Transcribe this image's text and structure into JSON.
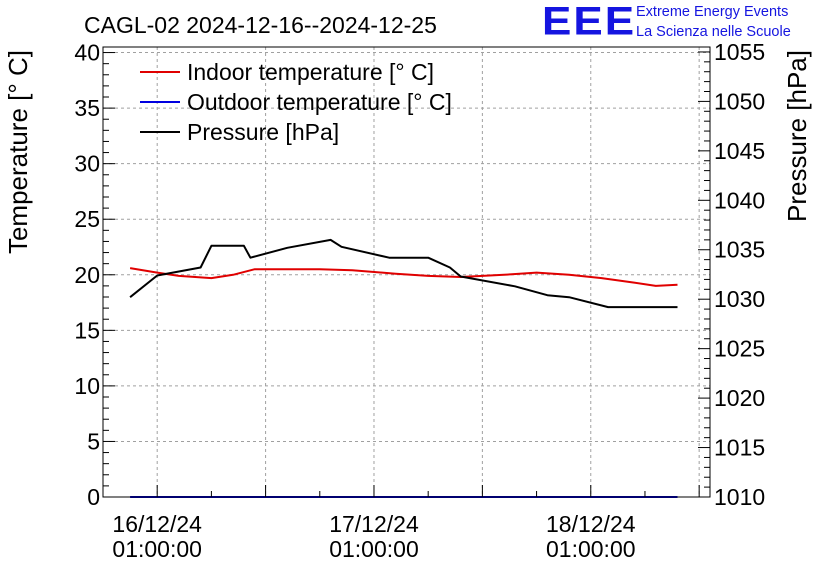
{
  "title": "CAGL-02 2024-12-16--2024-12-25",
  "logo": {
    "mark": "EEE",
    "line1": "Extreme Energy Events",
    "line2": "La Scienza nelle Scuole"
  },
  "chart_data": {
    "type": "line",
    "title": "CAGL-02 2024-12-16--2024-12-25",
    "ylabel": "Temperature [° C]",
    "y2label": "Pressure [hPa]",
    "ylim": [
      0,
      40.5
    ],
    "y2lim": [
      1010,
      1055.5
    ],
    "xlim": [
      -0.25,
      2.55
    ],
    "x_unit": "days since 16/12/24 01:00:00",
    "grid": true,
    "legend_position": "top-left",
    "yticks": [
      0,
      5,
      10,
      15,
      20,
      25,
      30,
      35,
      40
    ],
    "y2ticks": [
      1010,
      1015,
      1020,
      1025,
      1030,
      1035,
      1040,
      1045,
      1050,
      1055
    ],
    "xticks": [
      {
        "value": 0,
        "date": "16/12/24",
        "time": "01:00:00"
      },
      {
        "value": 1,
        "date": "17/12/24",
        "time": "01:00:00"
      },
      {
        "value": 2,
        "date": "18/12/24",
        "time": "01:00:00"
      }
    ],
    "series": [
      {
        "name": "Indoor temperature [° C]",
        "color": "#e00000",
        "axis": "left",
        "x": [
          -0.125,
          0.0,
          0.1,
          0.25,
          0.35,
          0.45,
          0.6,
          0.75,
          0.9,
          1.1,
          1.25,
          1.4,
          1.6,
          1.75,
          1.9,
          2.05,
          2.2,
          2.3,
          2.4
        ],
        "y": [
          20.6,
          20.2,
          19.9,
          19.7,
          20.0,
          20.5,
          20.5,
          20.5,
          20.4,
          20.1,
          19.9,
          19.8,
          20.0,
          20.2,
          20.0,
          19.7,
          19.3,
          19.0,
          19.1
        ]
      },
      {
        "name": "Outdoor temperature [° C]",
        "color": "#0000e0",
        "axis": "left",
        "x": [
          -0.125,
          2.4
        ],
        "y": [
          0,
          0
        ]
      },
      {
        "name": "Pressure [hPa]",
        "color": "#000000",
        "axis": "right",
        "x": [
          -0.125,
          0.0,
          0.2,
          0.25,
          0.4,
          0.43,
          0.6,
          0.8,
          0.85,
          1.07,
          1.25,
          1.35,
          1.4,
          1.65,
          1.8,
          1.9,
          2.08,
          2.2,
          2.4
        ],
        "y": [
          1030.2,
          1032.4,
          1033.2,
          1035.4,
          1035.4,
          1034.2,
          1035.2,
          1036.0,
          1035.3,
          1034.2,
          1034.2,
          1033.2,
          1032.3,
          1031.3,
          1030.4,
          1030.2,
          1029.2,
          1029.2,
          1029.2
        ]
      }
    ]
  }
}
